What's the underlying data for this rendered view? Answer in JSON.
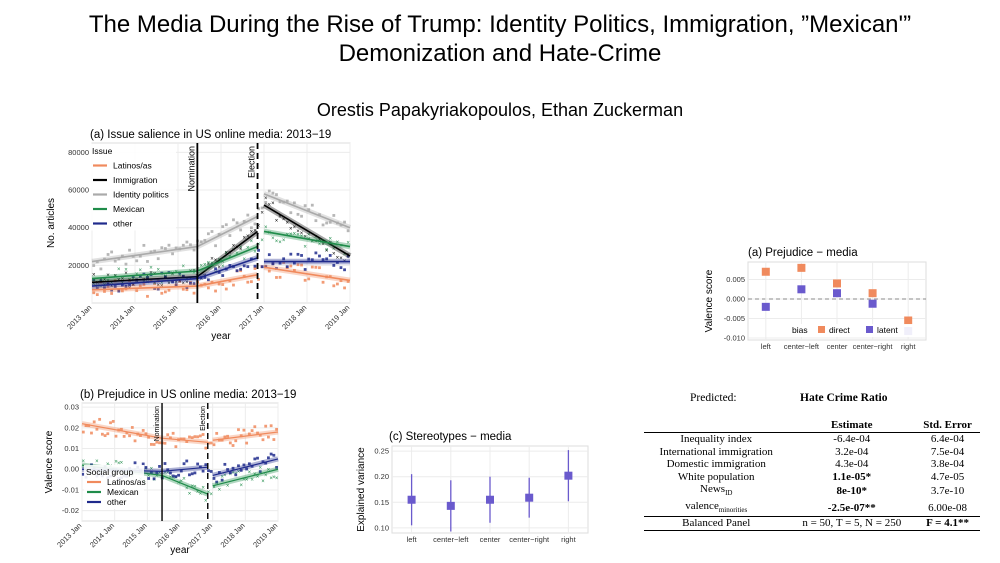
{
  "title": "The Media During the Rise of Trump: Identity Politics, Immigration, ”Mexican'” Demonization and Hate-Crime",
  "authors": "Orestis Papakyriakopoulos, Ethan Zuckerman",
  "chart_data": [
    {
      "id": "a",
      "type": "scatter",
      "title": "(a) Issue salience in US online media: 2013−19",
      "xlabel": "year",
      "ylabel": "No. articles",
      "xticks": [
        "2013 Jan",
        "2014 Jan",
        "2015 Jan",
        "2016 Jan",
        "2017 Jan",
        "2018 Jan",
        "2019 Jan"
      ],
      "yticks": [
        "20000",
        "40000",
        "60000",
        "80000"
      ],
      "ylim": [
        0,
        85000
      ],
      "legend_title": "Issue",
      "legend_position": "top-left",
      "grid": true,
      "vlines": [
        {
          "label": "Nomination",
          "x": 2015.45,
          "style": "solid"
        },
        {
          "label": "Election",
          "x": 2016.85,
          "style": "dashed"
        }
      ],
      "series": [
        {
          "name": "Latinos/as",
          "color": "#f08a5d",
          "trend": [
            [
              2013.0,
              7000
            ],
            [
              2015.45,
              9000
            ],
            [
              2016.85,
              15000
            ],
            [
              2017.0,
              19000
            ],
            [
              2019.0,
              12000
            ]
          ]
        },
        {
          "name": "Immigration",
          "color": "#000000",
          "trend": [
            [
              2013.0,
              11000
            ],
            [
              2015.45,
              14000
            ],
            [
              2016.85,
              38000
            ],
            [
              2017.0,
              52000
            ],
            [
              2019.0,
              25000
            ]
          ]
        },
        {
          "name": "Identity politics",
          "color": "#aaaaaa",
          "trend": [
            [
              2013.0,
              22000
            ],
            [
              2015.45,
              30000
            ],
            [
              2016.85,
              46000
            ],
            [
              2017.0,
              58000
            ],
            [
              2019.0,
              40000
            ]
          ]
        },
        {
          "name": "Mexican",
          "color": "#1f8c4a",
          "trend": [
            [
              2013.0,
              13000
            ],
            [
              2015.45,
              17000
            ],
            [
              2016.85,
              30000
            ],
            [
              2017.0,
              38000
            ],
            [
              2019.0,
              30000
            ]
          ]
        },
        {
          "name": "other",
          "color": "#1f2a8c",
          "trend": [
            [
              2013.0,
              9000
            ],
            [
              2015.45,
              13000
            ],
            [
              2016.85,
              24000
            ],
            [
              2017.0,
              22000
            ],
            [
              2019.0,
              22000
            ]
          ]
        }
      ]
    },
    {
      "id": "b",
      "type": "scatter",
      "title": "(b) Prejudice in US online media: 2013−19",
      "xlabel": "year",
      "ylabel": "Valence score",
      "xticks": [
        "2013 Jan",
        "2014 Jan",
        "2015 Jan",
        "2016 Jan",
        "2017 Jan",
        "2018 Jan",
        "2019 Jan"
      ],
      "yticks": [
        "-0.02",
        "-0.01",
        "0.00",
        "0.01",
        "0.02",
        "0.03"
      ],
      "ylim": [
        -0.025,
        0.032
      ],
      "legend_title": "Social group",
      "legend_position": "bottom-left",
      "grid": true,
      "vlines": [
        {
          "label": "Nomination",
          "x": 2015.45,
          "style": "solid"
        },
        {
          "label": "Election",
          "x": 2016.85,
          "style": "dashed"
        }
      ],
      "series": [
        {
          "name": "Latinos/as",
          "color": "#f08a5d",
          "trend": [
            [
              2013.0,
              0.022
            ],
            [
              2015.45,
              0.015
            ],
            [
              2016.85,
              0.013
            ],
            [
              2017.0,
              0.014
            ],
            [
              2019.0,
              0.018
            ]
          ]
        },
        {
          "name": "Mexican",
          "color": "#1f8c4a",
          "trend": [
            [
              2013.0,
              0.002
            ],
            [
              2015.45,
              -0.003
            ],
            [
              2016.85,
              -0.012
            ],
            [
              2017.0,
              -0.008
            ],
            [
              2019.0,
              0.0
            ]
          ]
        },
        {
          "name": "other",
          "color": "#1f2a8c",
          "trend": [
            [
              2013.0,
              0.0
            ],
            [
              2015.45,
              -0.001
            ],
            [
              2016.85,
              0.001
            ],
            [
              2017.0,
              -0.003
            ],
            [
              2019.0,
              0.005
            ]
          ]
        }
      ]
    },
    {
      "id": "c",
      "type": "scatter",
      "title": "(c) Stereotypes − media",
      "xlabel": "",
      "ylabel": "Explained variance",
      "categories": [
        "left",
        "center−left",
        "center",
        "center−right",
        "right"
      ],
      "yticks": [
        "0.10",
        "0.15",
        "0.20",
        "0.25"
      ],
      "ylim": [
        0.09,
        0.26
      ],
      "color": "#6a5acd",
      "values": [
        0.155,
        0.143,
        0.155,
        0.159,
        0.202
      ],
      "intervals": [
        [
          0.105,
          0.205
        ],
        [
          0.093,
          0.193
        ],
        [
          0.11,
          0.2
        ],
        [
          0.12,
          0.198
        ],
        [
          0.152,
          0.252
        ]
      ]
    },
    {
      "id": "d",
      "type": "scatter",
      "title": "(a) Prejudice − media",
      "xlabel": "",
      "ylabel": "Valence score",
      "categories": [
        "left",
        "center−left",
        "center",
        "center−right",
        "right"
      ],
      "yticks": [
        "-0.010",
        "-0.005",
        "0.000",
        "0.005"
      ],
      "ylim": [
        -0.0105,
        0.0095
      ],
      "legend_title": "bias",
      "legend_position": "bottom",
      "series": [
        {
          "name": "direct",
          "color": "#f08a5d",
          "values": [
            0.007,
            0.008,
            0.004,
            0.0015,
            -0.0055
          ],
          "errors": [
            0.0008,
            0.0008,
            0.0008,
            0.0008,
            0.0008
          ]
        },
        {
          "name": "latent",
          "color": "#6a5acd",
          "values": [
            -0.002,
            0.0025,
            0.0015,
            -0.0012,
            -0.0082
          ],
          "errors": [
            0.0008,
            0.0008,
            0.0008,
            0.0008,
            0.0008
          ]
        }
      ]
    },
    {
      "id": "table",
      "type": "table",
      "label": "Predicted:",
      "dependent": "Hate Crime Ratio",
      "columns": [
        "",
        "Estimate",
        "Std. Error"
      ],
      "rows": [
        {
          "name": "Inequality index",
          "estimate": "-6.4e-04",
          "se": "6.4e-04",
          "bold": false
        },
        {
          "name": "International immigration",
          "estimate": "3.2e-04",
          "se": "7.5e-04",
          "bold": false
        },
        {
          "name": "Domestic immigration",
          "estimate": "4.3e-04",
          "se": "3.8e-04",
          "bold": false
        },
        {
          "name": "White population",
          "estimate": "1.1e-05*",
          "se": "4.7e-05",
          "bold": true
        },
        {
          "name": "News",
          "sub": "ID",
          "estimate": "8e-10*",
          "se": "3.7e-10",
          "bold": true
        },
        {
          "name": "valence",
          "sub": "minorities",
          "estimate": "-2.5e-07**",
          "se": "6.00e-08",
          "bold": true
        }
      ],
      "footer": {
        "name": "Balanced Panel",
        "estimate": "n = 50, T = 5, N = 250",
        "se": "F = 4.1**"
      }
    }
  ]
}
